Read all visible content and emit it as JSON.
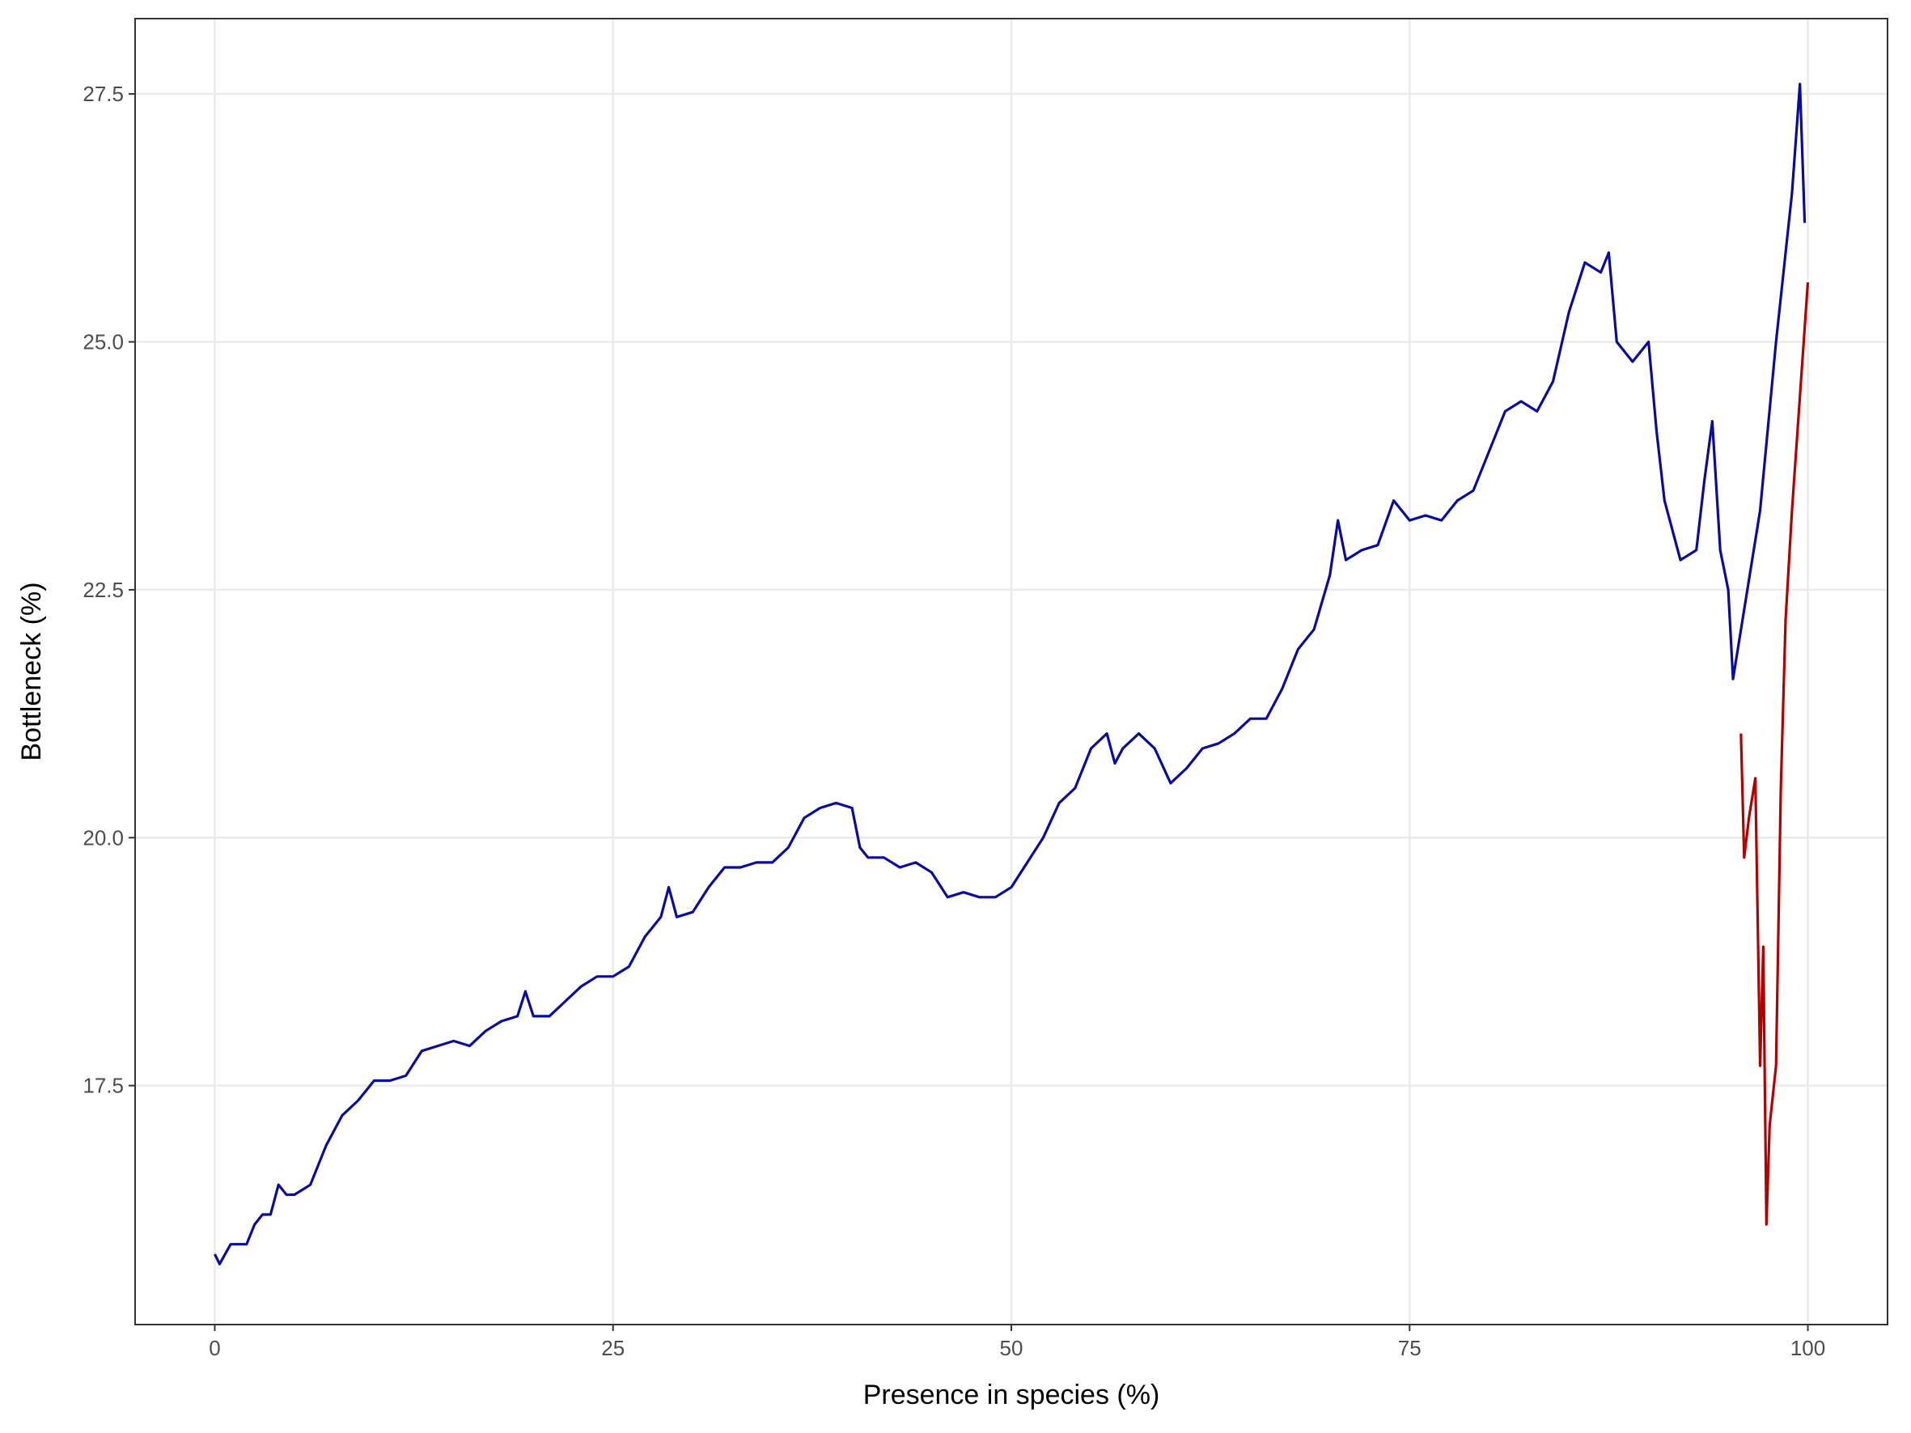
{
  "chart_data": {
    "type": "line",
    "x_label": "Presence in species (%)",
    "y_label": "Bottleneck (%)",
    "xlim": [
      -5,
      105
    ],
    "xticks": [
      0,
      25,
      50,
      75,
      100
    ],
    "ylim": [
      15.09,
      28.26
    ],
    "yticks": [
      17.5,
      {
        "value": 20,
        "label": "20.0"
      },
      22.5,
      {
        "value": 25,
        "label": "25.0"
      },
      27.5
    ],
    "grid": true,
    "series": [
      {
        "color": "#0a0a9c",
        "x": [
          0,
          0.3,
          1,
          1.5,
          2,
          2.5,
          3,
          3.5,
          4,
          4.5,
          5,
          6,
          7,
          8,
          9,
          10,
          11,
          12,
          13,
          14,
          15,
          16,
          17,
          18,
          19,
          19.5,
          20,
          21,
          22,
          23,
          24,
          25,
          26,
          27,
          28,
          28.5,
          29,
          30,
          31,
          32,
          33,
          34,
          35,
          36,
          37,
          38,
          39,
          40,
          40.5,
          41,
          42,
          43,
          44,
          45,
          46,
          47,
          48,
          49,
          50,
          51,
          52,
          53,
          54,
          55,
          56,
          56.5,
          57,
          58,
          59,
          60,
          61,
          62,
          63,
          64,
          65,
          66,
          67,
          68,
          69,
          70,
          70.5,
          71,
          72,
          73,
          74,
          75,
          76,
          77,
          78,
          79,
          80,
          81,
          82,
          83,
          84,
          85,
          86,
          87,
          87.5,
          88,
          89,
          90,
          90.5,
          91,
          92,
          93,
          93.5,
          94,
          94.5,
          95,
          95.3,
          97,
          98,
          99,
          99.5,
          99.8
        ],
        "values": [
          15.8,
          15.7,
          15.9,
          15.9,
          15.9,
          16.1,
          16.2,
          16.2,
          16.5,
          16.4,
          16.4,
          16.5,
          16.9,
          17.2,
          17.35,
          17.55,
          17.55,
          17.6,
          17.85,
          17.9,
          17.95,
          17.9,
          18.05,
          18.15,
          18.2,
          18.45,
          18.2,
          18.2,
          18.35,
          18.5,
          18.6,
          18.6,
          18.7,
          19.0,
          19.2,
          19.5,
          19.2,
          19.25,
          19.5,
          19.7,
          19.7,
          19.75,
          19.75,
          19.9,
          20.2,
          20.3,
          20.35,
          20.3,
          19.9,
          19.8,
          19.8,
          19.7,
          19.75,
          19.65,
          19.4,
          19.45,
          19.4,
          19.4,
          19.5,
          19.75,
          20.0,
          20.35,
          20.5,
          20.9,
          21.05,
          20.75,
          20.9,
          21.05,
          20.9,
          20.55,
          20.7,
          20.9,
          20.95,
          21.05,
          21.2,
          21.2,
          21.5,
          21.9,
          22.1,
          22.65,
          23.2,
          22.8,
          22.9,
          22.95,
          23.4,
          23.2,
          23.25,
          23.2,
          23.4,
          23.5,
          23.9,
          24.3,
          24.4,
          24.3,
          24.6,
          25.3,
          25.8,
          25.7,
          25.9,
          25.0,
          24.8,
          25.0,
          24.1,
          23.4,
          22.8,
          22.9,
          23.6,
          24.2,
          22.9,
          22.5,
          21.6,
          23.3,
          25.0,
          26.5,
          27.6,
          26.2
        ]
      },
      {
        "color": "#b30000",
        "x": [
          95.8,
          96,
          96.3,
          96.7,
          97,
          97.2,
          97.4,
          97.6,
          98,
          98.3,
          98.6,
          99,
          100
        ],
        "values": [
          21.05,
          19.8,
          20.2,
          20.6,
          17.7,
          18.9,
          16.1,
          17.1,
          17.7,
          20.5,
          22.2,
          23.3,
          25.6
        ]
      }
    ]
  }
}
